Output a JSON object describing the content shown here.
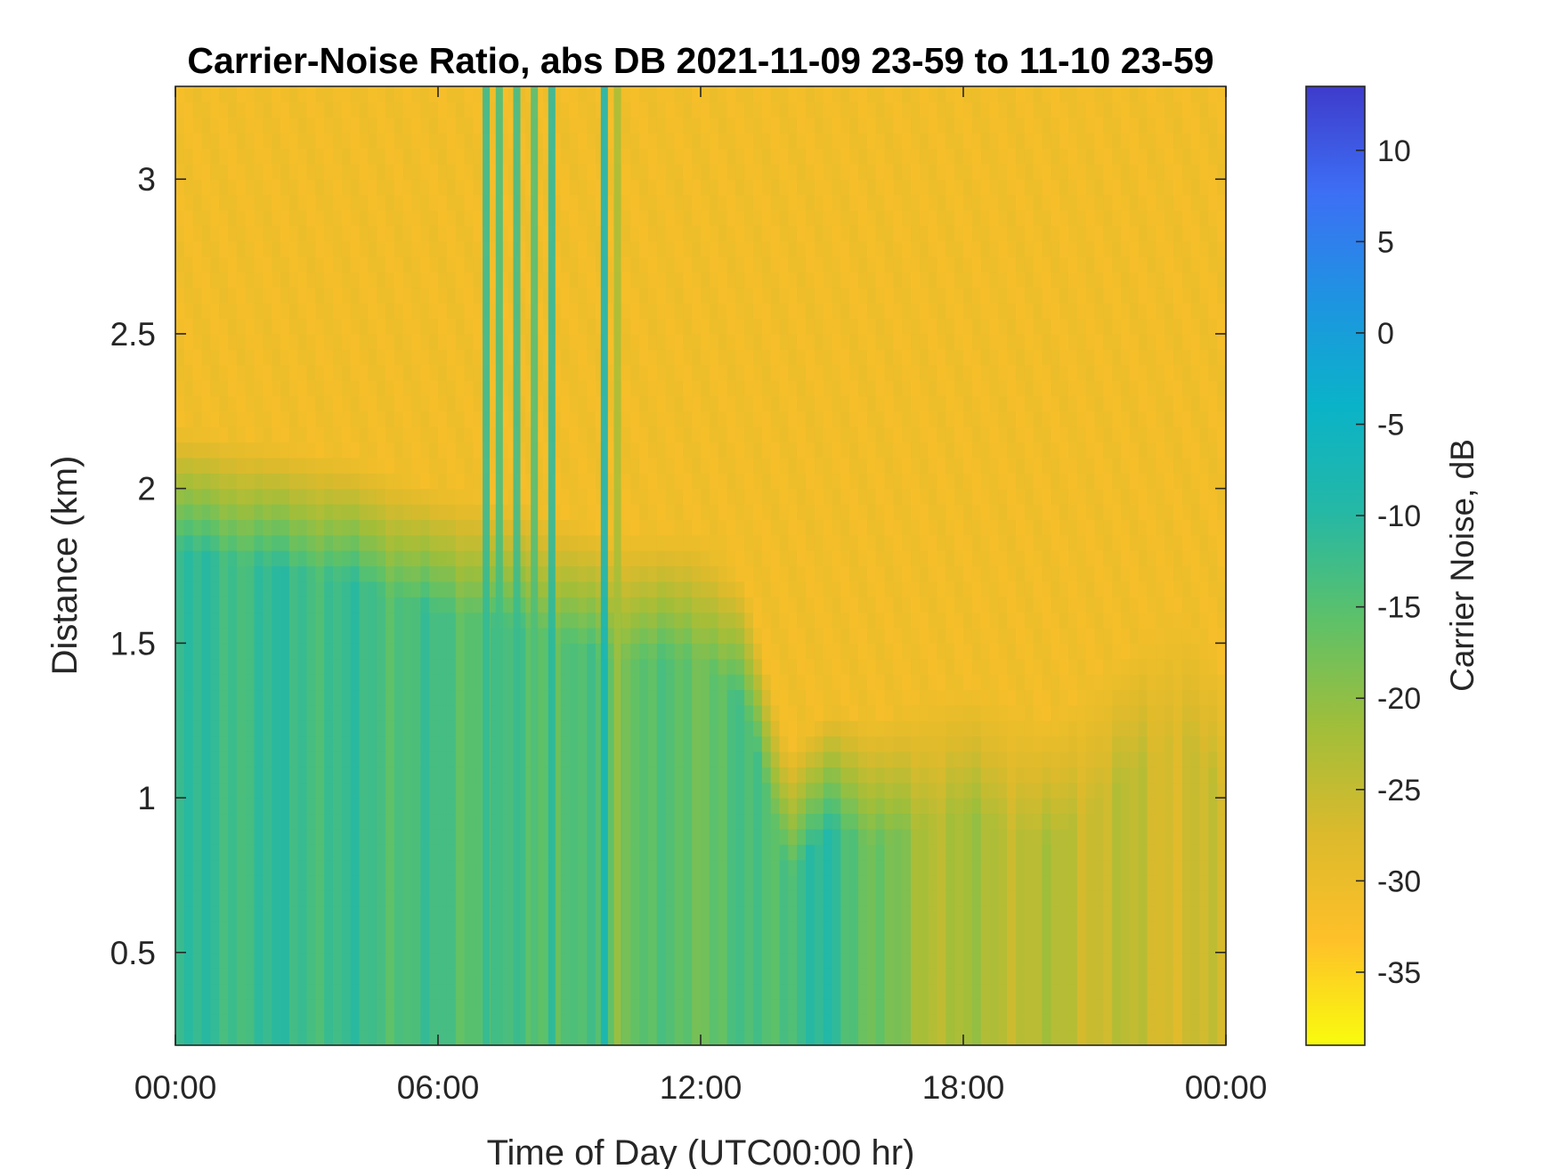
{
  "chart_data": {
    "type": "heatmap",
    "title": "Carrier-Noise Ratio, abs DB 2021-11-09 23-59 to 11-10 23-59",
    "xlabel": "Time of Day (UTC00:00 hr)",
    "ylabel": "Distance (km)",
    "colorbar_label": "Carrier Noise, dB",
    "xlim_hours": [
      0,
      24
    ],
    "ylim_km": [
      0.2,
      3.3
    ],
    "clim_db": [
      -39,
      13.5
    ],
    "x_ticks": [
      {
        "value": 0,
        "label": "00:00"
      },
      {
        "value": 6,
        "label": "06:00"
      },
      {
        "value": 12,
        "label": "12:00"
      },
      {
        "value": 18,
        "label": "18:00"
      },
      {
        "value": 24,
        "label": "00:00"
      }
    ],
    "y_ticks": [
      {
        "value": 0.5,
        "label": "0.5"
      },
      {
        "value": 1,
        "label": "1"
      },
      {
        "value": 1.5,
        "label": "1.5"
      },
      {
        "value": 2,
        "label": "2"
      },
      {
        "value": 2.5,
        "label": "2.5"
      },
      {
        "value": 3,
        "label": "3"
      }
    ],
    "colorbar_ticks": [
      {
        "value": 10,
        "label": "10"
      },
      {
        "value": 5,
        "label": "5"
      },
      {
        "value": 0,
        "label": "0"
      },
      {
        "value": -5,
        "label": "-5"
      },
      {
        "value": -10,
        "label": "-10"
      },
      {
        "value": -15,
        "label": "-15"
      },
      {
        "value": -20,
        "label": "-20"
      },
      {
        "value": -25,
        "label": "-25"
      },
      {
        "value": -30,
        "label": "-30"
      },
      {
        "value": -35,
        "label": "-35"
      }
    ],
    "colormap": "parula",
    "colormap_stops": [
      "#f9fb0e",
      "#fec029",
      "#dbba2c",
      "#a0be3a",
      "#5dc169",
      "#25b8a5",
      "#0ab3c8",
      "#1e94e1",
      "#3d6ff5",
      "#3e3bcb"
    ],
    "background_db": -31,
    "signal_boundary_km": [
      {
        "t": 0.0,
        "d": 2.2
      },
      {
        "t": 2.0,
        "d": 2.15
      },
      {
        "t": 4.0,
        "d": 2.1
      },
      {
        "t": 6.0,
        "d": 2.0
      },
      {
        "t": 8.0,
        "d": 1.95
      },
      {
        "t": 10.0,
        "d": 1.85
      },
      {
        "t": 12.0,
        "d": 1.85
      },
      {
        "t": 13.0,
        "d": 1.7
      },
      {
        "t": 14.0,
        "d": 1.15
      },
      {
        "t": 15.0,
        "d": 1.3
      },
      {
        "t": 16.0,
        "d": 1.25
      },
      {
        "t": 17.0,
        "d": 1.3
      },
      {
        "t": 18.0,
        "d": 1.35
      },
      {
        "t": 20.0,
        "d": 1.25
      },
      {
        "t": 22.0,
        "d": 1.5
      },
      {
        "t": 23.0,
        "d": 1.6
      },
      {
        "t": 24.0,
        "d": 1.4
      }
    ],
    "signal_core_db": [
      {
        "t": 0.0,
        "db": -12
      },
      {
        "t": 3.0,
        "db": -12
      },
      {
        "t": 6.0,
        "db": -14
      },
      {
        "t": 9.0,
        "db": -15
      },
      {
        "t": 12.0,
        "db": -16
      },
      {
        "t": 13.5,
        "db": -14
      },
      {
        "t": 15.0,
        "db": -11
      },
      {
        "t": 16.0,
        "db": -17
      },
      {
        "t": 17.0,
        "db": -22
      },
      {
        "t": 20.0,
        "db": -24
      },
      {
        "t": 24.0,
        "db": -27
      }
    ],
    "vertical_streaks": [
      {
        "t": 7.1,
        "db": -11
      },
      {
        "t": 7.4,
        "db": -13
      },
      {
        "t": 7.8,
        "db": -12
      },
      {
        "t": 8.2,
        "db": -14
      },
      {
        "t": 8.6,
        "db": -10
      },
      {
        "t": 9.8,
        "db": -6
      },
      {
        "t": 10.1,
        "db": -22
      }
    ]
  }
}
